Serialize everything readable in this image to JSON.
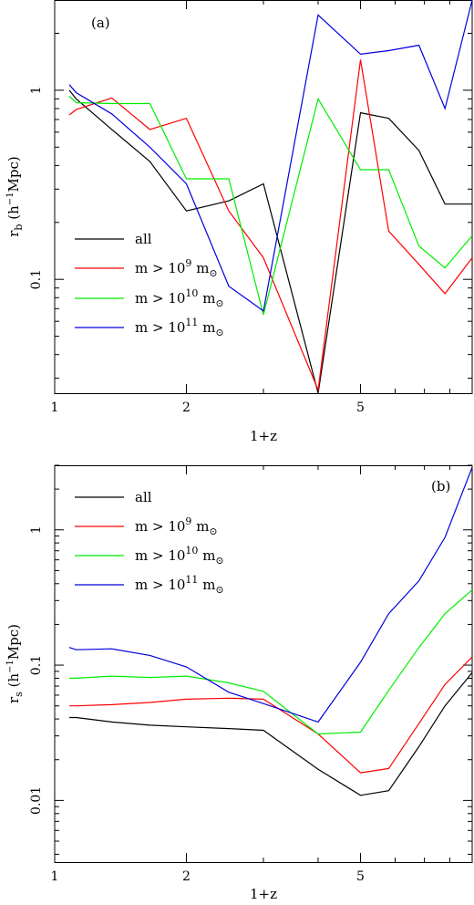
{
  "chart_data": [
    {
      "type": "line",
      "panel_label": "(a)",
      "xlabel": "1+z",
      "ylabel": {
        "base": "r",
        "sub": "b",
        "unit_pre": " (h",
        "unit_sup": "−1",
        "unit_post": "Mpc)"
      },
      "xscale": "log",
      "yscale": "log",
      "xlim": [
        1,
        9
      ],
      "ylim": [
        0.025,
        3.0
      ],
      "x_ticks": [
        1,
        2,
        5
      ],
      "y_ticks": [
        0.1,
        1
      ],
      "legend_position": "lower-left",
      "series": [
        {
          "name": "all",
          "name_html": "all",
          "color": "#000000",
          "x": [
            1.08,
            1.12,
            1.35,
            1.65,
            2.0,
            2.5,
            3.0,
            4.0,
            5.0,
            5.8,
            6.8,
            7.8,
            9.0
          ],
          "y": [
            1.0,
            0.9,
            0.62,
            0.42,
            0.23,
            0.26,
            0.32,
            0.025,
            0.76,
            0.71,
            0.48,
            0.25,
            0.25
          ]
        },
        {
          "name": "m > 10^9 m_sun",
          "color": "#ff0000",
          "label": {
            "pre": "m > 10",
            "sup": "9",
            "mid": " m",
            "sub": "⊙"
          },
          "x": [
            1.08,
            1.12,
            1.35,
            1.65,
            2.0,
            2.5,
            3.0,
            4.0,
            5.0,
            5.8,
            6.8,
            7.8,
            9.0
          ],
          "y": [
            0.74,
            0.79,
            0.91,
            0.62,
            0.71,
            0.23,
            0.13,
            0.026,
            1.45,
            0.18,
            0.12,
            0.084,
            0.13
          ]
        },
        {
          "name": "m > 10^10 m_sun",
          "color": "#00ee00",
          "label": {
            "pre": "m > 10",
            "sup": "10",
            "mid": " m",
            "sub": "⊙"
          },
          "x": [
            1.08,
            1.12,
            1.35,
            1.65,
            2.0,
            2.5,
            3.0,
            4.0,
            5.0,
            5.8,
            6.8,
            7.8,
            9.0
          ],
          "y": [
            0.93,
            0.86,
            0.85,
            0.85,
            0.34,
            0.34,
            0.065,
            0.9,
            0.38,
            0.38,
            0.15,
            0.115,
            0.17
          ]
        },
        {
          "name": "m > 10^11 m_sun",
          "color": "#0000dd",
          "label": {
            "pre": "m > 10",
            "sup": "11",
            "mid": " m",
            "sub": "⊙"
          },
          "x": [
            1.08,
            1.12,
            1.35,
            1.65,
            2.0,
            2.5,
            3.0,
            4.0,
            5.0,
            5.8,
            6.8,
            7.8,
            9.0
          ],
          "y": [
            1.07,
            0.97,
            0.75,
            0.5,
            0.32,
            0.092,
            0.068,
            2.5,
            1.55,
            1.62,
            1.73,
            0.8,
            3.0
          ]
        }
      ]
    },
    {
      "type": "line",
      "panel_label": "(b)",
      "xlabel": "1+z",
      "ylabel": {
        "base": "r",
        "sub": "s",
        "unit_pre": " (h",
        "unit_sup": "−1",
        "unit_post": "Mpc)"
      },
      "xscale": "log",
      "yscale": "log",
      "xlim": [
        1,
        9
      ],
      "ylim": [
        0.0035,
        3.0
      ],
      "x_ticks": [
        1,
        2,
        5
      ],
      "y_ticks": [
        0.01,
        0.1,
        1
      ],
      "legend_position": "top-left",
      "series": [
        {
          "name": "all",
          "color": "#000000",
          "x": [
            1.08,
            1.12,
            1.35,
            1.65,
            2.0,
            2.5,
            3.0,
            4.0,
            5.0,
            5.8,
            6.8,
            7.8,
            9.0
          ],
          "y": [
            0.041,
            0.041,
            0.038,
            0.036,
            0.035,
            0.034,
            0.033,
            0.017,
            0.0109,
            0.0118,
            0.025,
            0.05,
            0.088
          ]
        },
        {
          "name": "m > 10^9 m_sun",
          "color": "#ff0000",
          "x": [
            1.08,
            1.12,
            1.35,
            1.65,
            2.0,
            2.5,
            3.0,
            4.0,
            5.0,
            5.8,
            6.8,
            7.8,
            9.0
          ],
          "y": [
            0.05,
            0.05,
            0.051,
            0.053,
            0.056,
            0.057,
            0.056,
            0.031,
            0.016,
            0.0172,
            0.037,
            0.072,
            0.115
          ]
        },
        {
          "name": "m > 10^10 m_sun",
          "color": "#00ee00",
          "x": [
            1.08,
            1.12,
            1.35,
            1.65,
            2.0,
            2.5,
            3.0,
            4.0,
            5.0,
            5.8,
            6.8,
            7.8,
            9.0
          ],
          "y": [
            0.08,
            0.08,
            0.083,
            0.081,
            0.083,
            0.074,
            0.064,
            0.031,
            0.032,
            0.065,
            0.135,
            0.24,
            0.36
          ]
        },
        {
          "name": "m > 10^11 m_sun",
          "color": "#0000dd",
          "x": [
            1.08,
            1.12,
            1.35,
            1.65,
            2.0,
            2.5,
            3.0,
            4.0,
            5.0,
            5.8,
            6.8,
            7.8,
            9.0
          ],
          "y": [
            0.135,
            0.13,
            0.132,
            0.118,
            0.097,
            0.063,
            0.052,
            0.038,
            0.105,
            0.24,
            0.42,
            0.88,
            2.9
          ]
        }
      ]
    }
  ]
}
